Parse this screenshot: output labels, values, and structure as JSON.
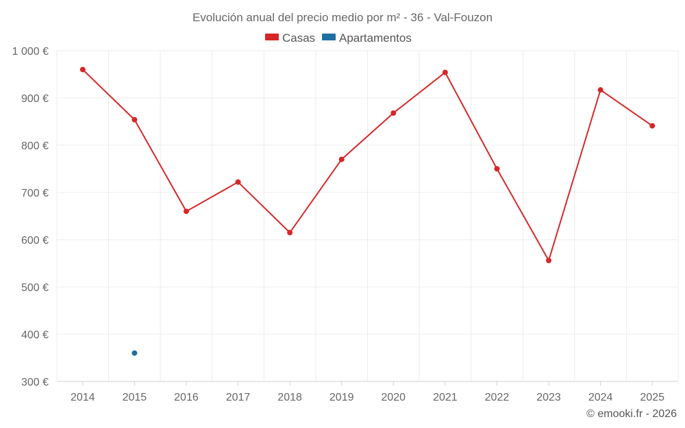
{
  "chart_data": {
    "type": "line",
    "title": "Evolución anual del precio medio por m² - 36 - Val-Fouzon",
    "xlabel": "",
    "ylabel": "",
    "categories": [
      "2014",
      "2015",
      "2016",
      "2017",
      "2018",
      "2019",
      "2020",
      "2021",
      "2022",
      "2023",
      "2024",
      "2025"
    ],
    "ylim": [
      300,
      1000
    ],
    "yticks": [
      300,
      400,
      500,
      600,
      700,
      800,
      900,
      1000
    ],
    "ytick_labels": [
      "300 €",
      "400 €",
      "500 €",
      "600 €",
      "700 €",
      "800 €",
      "900 €",
      "1 000 €"
    ],
    "grid": true,
    "legend_position": "top-center",
    "series": [
      {
        "name": "Casas",
        "color": "#d62728",
        "values": [
          960,
          854,
          660,
          722,
          615,
          770,
          868,
          954,
          750,
          556,
          917,
          841
        ]
      },
      {
        "name": "Apartamentos",
        "color": "#1f6fa3",
        "values": [
          null,
          360,
          null,
          null,
          null,
          null,
          null,
          null,
          null,
          null,
          null,
          null
        ]
      }
    ],
    "credit": "© emooki.fr - 2026"
  }
}
